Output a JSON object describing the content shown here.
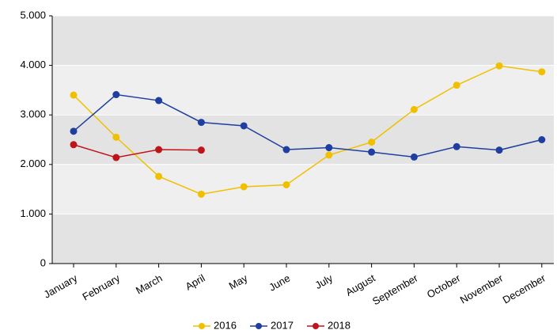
{
  "chart_data": {
    "type": "line",
    "categories": [
      "January",
      "February",
      "March",
      "April",
      "May",
      "June",
      "July",
      "August",
      "September",
      "October",
      "November",
      "December"
    ],
    "series": [
      {
        "name": "2016",
        "color": "#f0c000",
        "values": [
          3400,
          2550,
          1760,
          1400,
          1550,
          1590,
          2190,
          2450,
          3110,
          3600,
          3990,
          3870
        ]
      },
      {
        "name": "2017",
        "color": "#1f3fa0",
        "values": [
          2670,
          3410,
          3290,
          2850,
          2780,
          2300,
          2340,
          2250,
          2150,
          2360,
          2290,
          2500
        ]
      },
      {
        "name": "2018",
        "color": "#c0141b",
        "values": [
          2400,
          2140,
          2300,
          2290,
          null,
          null,
          null,
          null,
          null,
          null,
          null,
          null
        ]
      }
    ],
    "ylim": [
      0,
      5000
    ],
    "yticks": [
      0,
      {
        "value": 1000,
        "label": "1.000"
      },
      {
        "value": 2000,
        "label": "2.000"
      },
      {
        "value": 3000,
        "label": "3.000"
      },
      {
        "value": 4000,
        "label": "4.000"
      },
      {
        "value": 5000,
        "label": "5.000"
      }
    ],
    "grid": true,
    "legend": "bottom"
  }
}
